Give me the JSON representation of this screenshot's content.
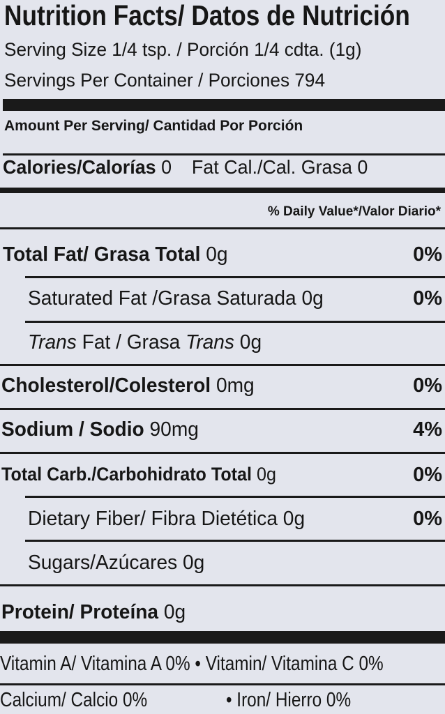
{
  "header": {
    "title": "Nutrition Facts/ Datos de Nutrición",
    "serving_size": "Serving Size 1/4 tsp. / Porción 1/4 cdta. (1g)",
    "servings_per_container": "Servings Per Container / Porciones 794"
  },
  "amount_per_serving": "Amount Per Serving/ Cantidad Por Porción",
  "calories": {
    "label": "Calories/Calorías",
    "value": "0",
    "fat_cal": "Fat Cal./Cal. Grasa 0"
  },
  "daily_value_header": "% Daily Value*/Valor Diario*",
  "nutrients": [
    {
      "label": "Total Fat/ Grasa Total",
      "amount": "0g",
      "dv": "0%"
    },
    {
      "label": "Saturated Fat /Grasa Saturada",
      "amount": "0g",
      "dv": "0%"
    },
    {
      "label_italic_1": "Trans",
      "label_mid": " Fat / Grasa ",
      "label_italic_2": "Trans",
      "amount": "0g"
    },
    {
      "label": "Cholesterol/Colesterol",
      "amount": "0mg",
      "dv": "0%"
    },
    {
      "label": "Sodium / Sodio",
      "amount": "90mg",
      "dv": "4%"
    },
    {
      "label": "Total Carb./Carbohidrato Total",
      "amount": "0g",
      "dv": "0%"
    },
    {
      "label": "Dietary Fiber/ Fibra Dietética",
      "amount": "0g",
      "dv": "0%"
    },
    {
      "label": "Sugars/Azúcares",
      "amount": "0g"
    },
    {
      "label": "Protein/ Proteína",
      "amount": "0g"
    }
  ],
  "vitamins": {
    "vitamin_a": "Vitamin A/ Vitamina A 0%",
    "vitamin_c": "Vitamin/ Vitamina C 0%",
    "calcium": "Calcium/ Calcio 0%",
    "iron": "Iron/ Hierro 0%",
    "bullet": "•"
  }
}
